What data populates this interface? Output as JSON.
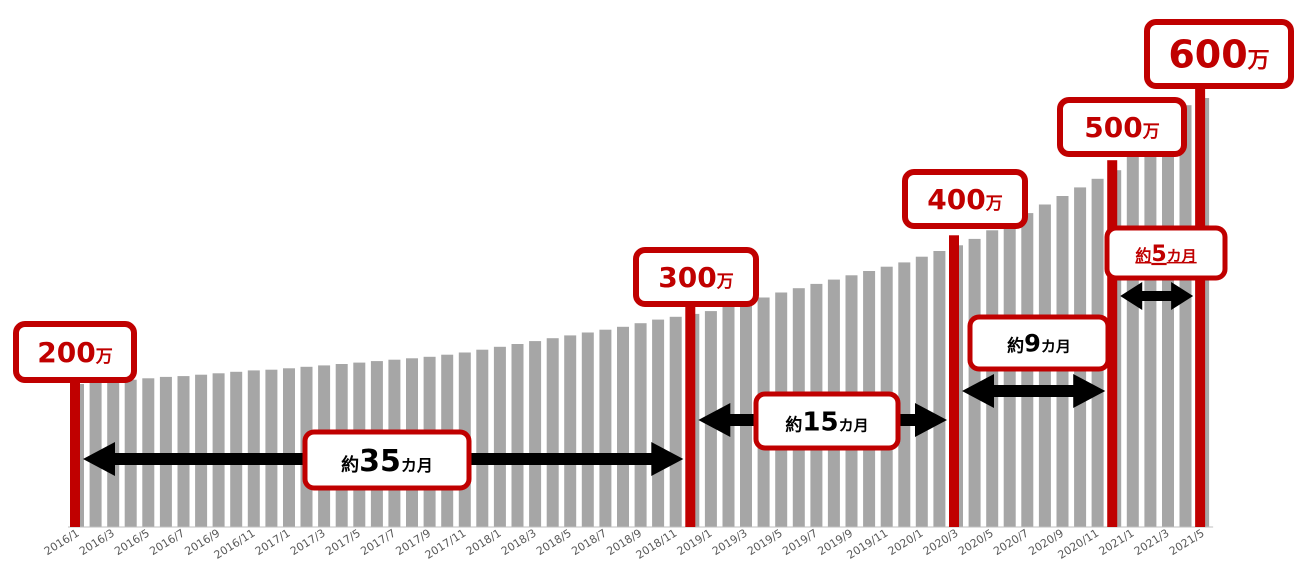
{
  "chart_data": {
    "type": "bar",
    "categories": [
      "2016/1",
      "2016/2",
      "2016/3",
      "2016/4",
      "2016/5",
      "2016/6",
      "2016/7",
      "2016/8",
      "2016/9",
      "2016/10",
      "2016/11",
      "2016/12",
      "2017/1",
      "2017/2",
      "2017/3",
      "2017/4",
      "2017/5",
      "2017/6",
      "2017/7",
      "2017/8",
      "2017/9",
      "2017/10",
      "2017/11",
      "2017/12",
      "2018/1",
      "2018/2",
      "2018/3",
      "2018/4",
      "2018/5",
      "2018/6",
      "2018/7",
      "2018/8",
      "2018/9",
      "2018/10",
      "2018/11",
      "2018/12",
      "2019/1",
      "2019/2",
      "2019/3",
      "2019/4",
      "2019/5",
      "2019/6",
      "2019/7",
      "2019/8",
      "2019/9",
      "2019/10",
      "2019/11",
      "2019/12",
      "2020/1",
      "2020/2",
      "2020/3",
      "2020/4",
      "2020/5",
      "2020/6",
      "2020/7",
      "2020/8",
      "2020/9",
      "2020/10",
      "2020/11",
      "2020/12",
      "2021/1",
      "2021/2",
      "2021/3",
      "2021/4",
      "2021/5"
    ],
    "tick_labels": [
      "2016/1",
      "2016/3",
      "2016/5",
      "2016/7",
      "2016/9",
      "2016/11",
      "2017/1",
      "2017/3",
      "2017/5",
      "2017/7",
      "2017/9",
      "2017/11",
      "2018/1",
      "2018/3",
      "2018/5",
      "2018/7",
      "2018/9",
      "2018/11",
      "2019/1",
      "2019/3",
      "2019/5",
      "2019/7",
      "2019/9",
      "2019/11",
      "2020/1",
      "2020/3",
      "2020/5",
      "2020/7",
      "2020/9",
      "2020/11",
      "2021/1",
      "2021/3",
      "2021/5"
    ],
    "values": [
      200,
      202,
      204,
      206,
      208,
      210,
      211,
      213,
      215,
      217,
      219,
      220,
      222,
      224,
      226,
      228,
      230,
      232,
      234,
      236,
      238,
      241,
      244,
      248,
      252,
      256,
      260,
      264,
      268,
      272,
      276,
      280,
      285,
      290,
      294,
      298,
      302,
      308,
      314,
      321,
      328,
      334,
      340,
      346,
      352,
      358,
      364,
      370,
      378,
      386,
      394,
      403,
      415,
      427,
      439,
      451,
      463,
      475,
      487,
      499,
      520,
      545,
      568,
      590,
      600
    ],
    "ylim": [
      0,
      620
    ],
    "grid": false,
    "bar_color": "#a6a6a6",
    "accent_color": "#c00000",
    "milestones": [
      {
        "value_text": "200",
        "unit": "万",
        "category": "2016/1"
      },
      {
        "value_text": "300",
        "unit": "万",
        "category": "2018/12"
      },
      {
        "value_text": "400",
        "unit": "万",
        "category": "2020/3"
      },
      {
        "value_text": "500",
        "unit": "万",
        "category": "2020/12"
      },
      {
        "value_text": "600",
        "unit": "万",
        "category": "2021/5"
      }
    ],
    "spans": [
      {
        "prefix": "約",
        "number": "35",
        "suffix": "カ月",
        "from": "2016/1",
        "to": "2018/12"
      },
      {
        "prefix": "約",
        "number": "15",
        "suffix": "カ月",
        "from": "2018/12",
        "to": "2020/3"
      },
      {
        "prefix": "約",
        "number": "9",
        "suffix": "カ月",
        "from": "2020/3",
        "to": "2020/12"
      },
      {
        "prefix": "約",
        "number": "5",
        "suffix": "カ月",
        "from": "2020/12",
        "to": "2021/5",
        "highlight": true
      }
    ]
  }
}
